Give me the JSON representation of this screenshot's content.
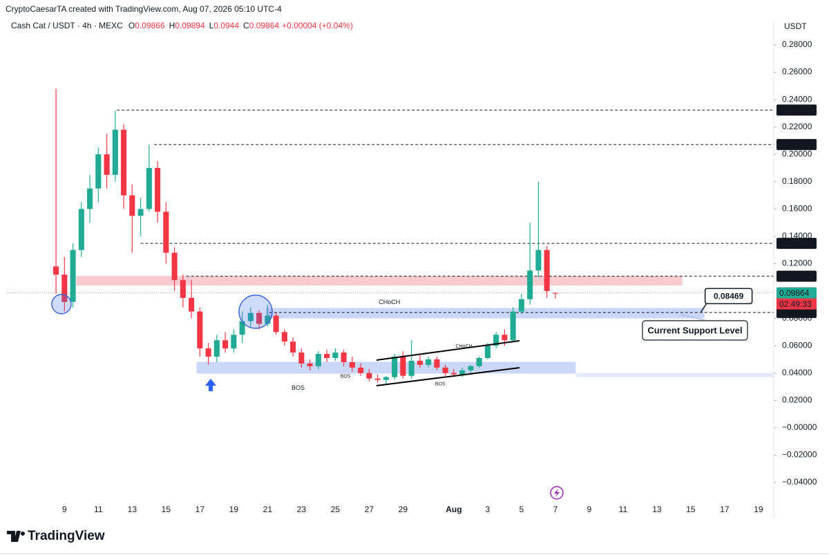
{
  "chart_data": {
    "type": "candlestick",
    "credit": "CryptoCaesarTA created with TradingView.com, Aug 07, 2026 05:10 UTC-4",
    "symbol": "Cash Cat / USDT · 4h · MEXC",
    "ohlc": [
      {
        "label": "O",
        "value": 0.09866
      },
      {
        "label": "H",
        "value": 0.09894
      },
      {
        "label": "L",
        "value": 0.0944
      },
      {
        "label": "C",
        "value": 0.09864
      }
    ],
    "change": "+0.00004 (+0.04%)",
    "currency": "USDT",
    "brand": "TradingView",
    "up_color": "#22ab94",
    "down_color": "#f23645",
    "grid": false,
    "xlim": [
      5.6,
      50.9
    ],
    "ylim": [
      -0.0663,
      0.2977
    ],
    "xticks": [
      9,
      11,
      13,
      15,
      17,
      19,
      21,
      23,
      25,
      27,
      29,
      {
        "value": 32,
        "label": "Aug"
      },
      {
        "value": 34,
        "label": "3"
      },
      {
        "value": 36,
        "label": "5"
      },
      {
        "value": 38,
        "label": "7"
      },
      {
        "value": 40,
        "label": "9"
      },
      {
        "value": 42,
        "label": "11"
      },
      {
        "value": 44,
        "label": "13"
      },
      {
        "value": 46,
        "label": "15"
      },
      {
        "value": 48,
        "label": "17"
      },
      {
        "value": 50,
        "label": "19"
      }
    ],
    "yticks": [
      {
        "value": 0.28,
        "label": "0.28000"
      },
      {
        "value": 0.26,
        "label": "0.26000"
      },
      {
        "value": 0.24,
        "label": "0.24000"
      },
      {
        "value": 0.22,
        "label": "0.22000"
      },
      {
        "value": 0.2,
        "label": "0.20000"
      },
      {
        "value": 0.18,
        "label": "0.18000"
      },
      {
        "value": 0.16,
        "label": "0.16000"
      },
      {
        "value": 0.14,
        "label": "0.14000"
      },
      {
        "value": 0.12,
        "label": "0.12000"
      },
      {
        "value": 0.08,
        "label": "0.08000"
      },
      {
        "value": 0.06,
        "label": "0.06000"
      },
      {
        "value": 0.04,
        "label": "0.04000"
      },
      {
        "value": 0.02,
        "label": "0.02000"
      },
      {
        "value": 0,
        "label": "−0.00000"
      },
      {
        "value": -0.02,
        "label": "−0.02000"
      },
      {
        "value": -0.04,
        "label": "−0.04000"
      }
    ],
    "x": [
      8.5,
      9,
      9.5,
      10,
      10.5,
      11,
      11.5,
      12,
      12.5,
      13,
      13.5,
      14,
      14.5,
      15,
      15.5,
      16,
      16.5,
      17,
      17.5,
      18,
      18.5,
      19,
      19.5,
      20,
      20.5,
      21,
      21.5,
      22,
      22.5,
      23,
      23.5,
      24,
      24.5,
      25,
      25.5,
      26,
      26.5,
      27,
      27.5,
      28,
      28.5,
      29,
      29.5,
      30,
      30.5,
      31,
      31.5,
      32,
      32.5,
      33,
      33.5,
      34,
      34.5,
      35,
      35.5,
      36,
      36.5,
      37,
      37.5,
      38
    ],
    "open": [
      0.118,
      0.112,
      0.092,
      0.13,
      0.16,
      0.175,
      0.2,
      0.185,
      0.218,
      0.17,
      0.155,
      0.16,
      0.19,
      0.158,
      0.128,
      0.108,
      0.095,
      0.085,
      0.058,
      0.052,
      0.064,
      0.058,
      0.068,
      0.078,
      0.084,
      0.076,
      0.082,
      0.07,
      0.063,
      0.055,
      0.047,
      0.045,
      0.054,
      0.051,
      0.055,
      0.048,
      0.044,
      0.04,
      0.036,
      0.035,
      0.037,
      0.052,
      0.038,
      0.049,
      0.046,
      0.05,
      0.044,
      0.04,
      0.039,
      0.042,
      0.045,
      0.051,
      0.06,
      0.068,
      0.064,
      0.085,
      0.094,
      0.115,
      0.13,
      0.09866
    ],
    "high": [
      0.248,
      0.125,
      0.135,
      0.165,
      0.185,
      0.205,
      0.215,
      0.232,
      0.222,
      0.178,
      0.168,
      0.207,
      0.195,
      0.165,
      0.132,
      0.112,
      0.108,
      0.088,
      0.062,
      0.068,
      0.07,
      0.072,
      0.085,
      0.088,
      0.086,
      0.09,
      0.084,
      0.072,
      0.066,
      0.058,
      0.05,
      0.056,
      0.057,
      0.058,
      0.057,
      0.052,
      0.047,
      0.043,
      0.039,
      0.038,
      0.054,
      0.056,
      0.064,
      0.053,
      0.052,
      0.052,
      0.046,
      0.043,
      0.044,
      0.046,
      0.052,
      0.062,
      0.07,
      0.072,
      0.088,
      0.098,
      0.15,
      0.18,
      0.133,
      0.09894
    ],
    "low": [
      0.098,
      0.085,
      0.088,
      0.125,
      0.15,
      0.165,
      0.175,
      0.18,
      0.16,
      0.128,
      0.14,
      0.158,
      0.15,
      0.12,
      0.1,
      0.088,
      0.08,
      0.052,
      0.046,
      0.048,
      0.055,
      0.055,
      0.062,
      0.074,
      0.072,
      0.074,
      0.068,
      0.06,
      0.052,
      0.044,
      0.042,
      0.043,
      0.048,
      0.049,
      0.045,
      0.041,
      0.038,
      0.034,
      0.033,
      0.032,
      0.035,
      0.036,
      0.036,
      0.044,
      0.044,
      0.042,
      0.038,
      0.037,
      0.037,
      0.04,
      0.044,
      0.05,
      0.058,
      0.06,
      0.063,
      0.083,
      0.09,
      0.11,
      0.095,
      0.0944
    ],
    "close": [
      0.112,
      0.092,
      0.13,
      0.16,
      0.175,
      0.2,
      0.185,
      0.218,
      0.17,
      0.155,
      0.16,
      0.19,
      0.158,
      0.128,
      0.108,
      0.095,
      0.085,
      0.058,
      0.052,
      0.064,
      0.058,
      0.068,
      0.078,
      0.084,
      0.076,
      0.082,
      0.07,
      0.063,
      0.055,
      0.047,
      0.045,
      0.054,
      0.051,
      0.055,
      0.048,
      0.044,
      0.04,
      0.036,
      0.035,
      0.037,
      0.052,
      0.038,
      0.049,
      0.046,
      0.05,
      0.044,
      0.04,
      0.039,
      0.042,
      0.045,
      0.051,
      0.06,
      0.068,
      0.064,
      0.085,
      0.094,
      0.115,
      0.13,
      0.1,
      0.09864
    ],
    "zones": [
      {
        "color": "#f7c5cb",
        "x0": 9.7,
        "x1": 45.5,
        "y0": 0.104,
        "y1": 0.111
      },
      {
        "color": "#c5d3f6",
        "x0": 20.9,
        "x1": 46.8,
        "y0": 0.08,
        "y1": 0.0876
      },
      {
        "color": "#c5d3f6",
        "x0": 16.8,
        "x1": 39.2,
        "y0": 0.0396,
        "y1": 0.0482
      },
      {
        "color": "#dfe8fb",
        "x0": 39.2,
        "x1": 50.9,
        "y0": 0.037,
        "y1": 0.04
      }
    ],
    "levels": [
      {
        "value": 0.23238,
        "start": 12.1
      },
      {
        "value": 0.20716,
        "start": 14.3
      },
      {
        "value": 0.13483,
        "start": 13.5
      },
      {
        "value": 0.11081,
        "start": 16.2
      },
      {
        "value": 0.08429,
        "start": 21.1
      }
    ],
    "last_price": 0.09864,
    "countdown": "02:49:33",
    "callout": {
      "value": 0.08469,
      "x": 46.6
    },
    "support_label": "Current Support Level",
    "annotations": [
      {
        "text": "CHoCH",
        "x": 28.2,
        "y": 0.0915,
        "color": "#26a69a"
      },
      {
        "text": "BOS",
        "x": 22.8,
        "y": 0.0289,
        "color": "#f23645"
      },
      {
        "text": "CHoCH",
        "x": 32.6,
        "y": 0.0595,
        "color": "#26a69a"
      },
      {
        "text": "BOS",
        "x": 25.6,
        "y": 0.0375,
        "color": "#f23645"
      },
      {
        "text": "BOS",
        "x": 31.2,
        "y": 0.032,
        "color": "#f23645"
      }
    ]
  }
}
